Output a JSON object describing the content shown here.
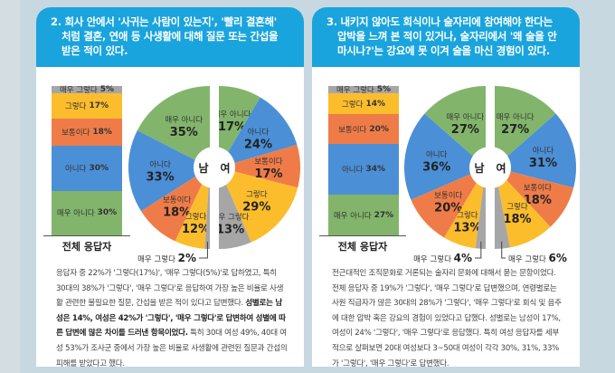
{
  "colors": {
    "header": "#1aa4dd",
    "very_no": "#82b56b",
    "no": "#4b8fd6",
    "neutral": "#ef7c48",
    "yes": "#fcbd2c",
    "very_yes": "#a6a6a6"
  },
  "center_labels": {
    "male": "남",
    "female": "여"
  },
  "panels": [
    {
      "title": "2. 회사 안에서 '사귀는 사람이 있는지', '빨리 결혼해' 처럼 결혼, 연애 등 사생활에 대해 질문 또는 간섭을 받은 적이 있다.",
      "total_label": "전체 응답자",
      "total": [
        {
          "label": "매우 아니다",
          "pct": "30%",
          "value": 30,
          "key": "very_no"
        },
        {
          "label": "아니다",
          "pct": "30%",
          "value": 30,
          "key": "no"
        },
        {
          "label": "보통이다",
          "pct": "18%",
          "value": 18,
          "key": "neutral"
        },
        {
          "label": "그렇다",
          "pct": "17%",
          "value": 17,
          "key": "yes"
        },
        {
          "label": "매우 그렇다",
          "pct": "5%",
          "value": 5,
          "key": "very_yes"
        }
      ],
      "male": [
        {
          "label": "매우 아니다",
          "pct": "35%",
          "value": 35,
          "key": "very_no"
        },
        {
          "label": "아니다",
          "pct": "33%",
          "value": 33,
          "key": "no"
        },
        {
          "label": "보통이다",
          "pct": "18%",
          "value": 18,
          "key": "neutral"
        },
        {
          "label": "그렇다",
          "pct": "12%",
          "value": 12,
          "key": "yes"
        },
        {
          "label": "매우 그렇다",
          "pct": "2%",
          "value": 2,
          "key": "very_yes"
        }
      ],
      "female": [
        {
          "label": "매우 아니다",
          "pct": "17%",
          "value": 17,
          "key": "very_no"
        },
        {
          "label": "아니다",
          "pct": "24%",
          "value": 24,
          "key": "no"
        },
        {
          "label": "보통이다",
          "pct": "17%",
          "value": 17,
          "key": "neutral"
        },
        {
          "label": "그렇다",
          "pct": "29%",
          "value": 29,
          "key": "yes"
        },
        {
          "label": "매우 그렇다",
          "pct": "13%",
          "value": 13,
          "key": "very_yes"
        }
      ],
      "body": [
        {
          "t": "응답자 중 22%가 '그렇다(17%)', '매우 그렇다(5%)'로 답하였고, 특히 30대의 38%가 '그렇다', '매우 그렇다'로 응답하여 가장 높은 비율로 사생활 관련한 불필요한 질문, 간섭을 받은 적이 있다고 답변했다. ",
          "b": false
        },
        {
          "t": "성별로는 남성은 14%, 여성은 42%가 '그렇다', '매우 그렇다'로 답변하여 성별에 따른 답변에 많은 차이를 드러낸 항목이었다.",
          "b": true
        },
        {
          "t": " 특히 30대 여성 49%, 40대 여성 53%가 조사군 중에서 가장 높은 비율로 사생활에 관련된 질문과 간섭의 피해를 받았다고 했다.",
          "b": false
        }
      ]
    },
    {
      "title": "3. 내키지 않아도 회식이나 술자리에 참여해야 한다는 압박을 느껴 본 적이 있거나, 술자리에서 '왜 술을 안마시나?'는 강요에 못 이겨 술을 마신 경험이 있다.",
      "total_label": "전체 응답자",
      "total": [
        {
          "label": "매우 아니다",
          "pct": "27%",
          "value": 27,
          "key": "very_no"
        },
        {
          "label": "아니다",
          "pct": "34%",
          "value": 34,
          "key": "no"
        },
        {
          "label": "보통이다",
          "pct": "20%",
          "value": 20,
          "key": "neutral"
        },
        {
          "label": "그렇다",
          "pct": "14%",
          "value": 14,
          "key": "yes"
        },
        {
          "label": "매우 그렇다",
          "pct": "5%",
          "value": 5,
          "key": "very_yes"
        }
      ],
      "male": [
        {
          "label": "매우 아니다",
          "pct": "27%",
          "value": 27,
          "key": "very_no"
        },
        {
          "label": "아니다",
          "pct": "36%",
          "value": 36,
          "key": "no"
        },
        {
          "label": "보통이다",
          "pct": "20%",
          "value": 20,
          "key": "neutral"
        },
        {
          "label": "그렇다",
          "pct": "13%",
          "value": 13,
          "key": "yes"
        },
        {
          "label": "매우 그렇다",
          "pct": "4%",
          "value": 4,
          "key": "very_yes"
        }
      ],
      "female": [
        {
          "label": "매우 아니다",
          "pct": "27%",
          "value": 27,
          "key": "very_no"
        },
        {
          "label": "아니다",
          "pct": "31%",
          "value": 31,
          "key": "no"
        },
        {
          "label": "보통이다",
          "pct": "18%",
          "value": 18,
          "key": "neutral"
        },
        {
          "label": "그렇다",
          "pct": "18%",
          "value": 18,
          "key": "yes"
        },
        {
          "label": "매우 그렇다",
          "pct": "6%",
          "value": 6,
          "key": "very_yes"
        }
      ],
      "body": [
        {
          "t": "전근대적인 조직문화로 거론되는 술자리 문화에 대해서 묻는 문항이었다. 전체 응답자 중 19%가 '그렇다', '매우 그렇다'로 답변했으며, 연령별로는 사원 직급자가 많은 30대의 28%가 '그렇다', '매우 그렇다'로 회식 및 음주에 대한 압박 혹은 강요의 경험이 있었다고 답했다. 성별로는 남성이 17%, 여성이 24% '그렇다', '매우 그렇다'로 응답했다. 특히 여성 응답자를 세부적으로 살펴보면 20대 여성보다 3~50대 여성이 각각 30%, 31%, 33%가 '그렇다', '매우 그렇다'로 답변했다.",
          "b": false
        }
      ]
    }
  ]
}
